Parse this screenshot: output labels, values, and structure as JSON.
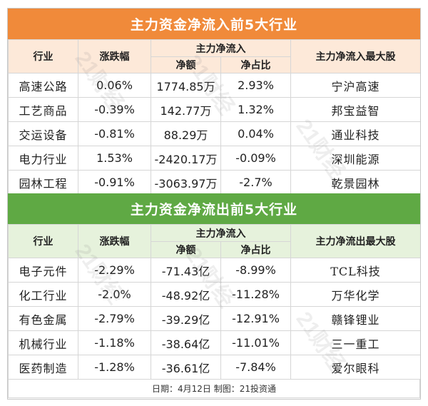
{
  "inflow": {
    "title": "主力资金净流入前5大行业",
    "headers": {
      "industry": "行业",
      "change": "涨跌幅",
      "net_group": "主力净流入",
      "net_amount": "净额",
      "net_ratio": "净占比",
      "top_stock": "主力净流入最大股"
    },
    "rows": [
      {
        "industry": "高速公路",
        "change": "0.06%",
        "amount": "1774.85万",
        "ratio": "2.93%",
        "stock": "宁沪高速"
      },
      {
        "industry": "工艺商品",
        "change": "-0.39%",
        "amount": "142.77万",
        "ratio": "1.32%",
        "stock": "邦宝益智"
      },
      {
        "industry": "交运设备",
        "change": "-0.81%",
        "amount": "88.29万",
        "ratio": "0.04%",
        "stock": "通业科技"
      },
      {
        "industry": "电力行业",
        "change": "1.53%",
        "amount": "-2420.17万",
        "ratio": "-0.09%",
        "stock": "深圳能源"
      },
      {
        "industry": "园林工程",
        "change": "-0.91%",
        "amount": "-3063.97万",
        "ratio": "-2.7%",
        "stock": "乾景园林"
      }
    ]
  },
  "outflow": {
    "title": "主力资金净流出前5大行业",
    "headers": {
      "industry": "行业",
      "change": "涨跌幅",
      "net_group": "主力净流入",
      "net_amount": "净额",
      "net_ratio": "净占比",
      "top_stock": "主力净流出最大股"
    },
    "rows": [
      {
        "industry": "电子元件",
        "change": "-2.29%",
        "amount": "-71.43亿",
        "ratio": "-8.99%",
        "stock": "TCL科技"
      },
      {
        "industry": "化工行业",
        "change": "-2.0%",
        "amount": "-48.92亿",
        "ratio": "-11.28%",
        "stock": "万华化学"
      },
      {
        "industry": "有色金属",
        "change": "-2.79%",
        "amount": "-39.29亿",
        "ratio": "-12.91%",
        "stock": "赣锋锂业"
      },
      {
        "industry": "机械行业",
        "change": "-1.18%",
        "amount": "-38.64亿",
        "ratio": "-11.01%",
        "stock": "三一重工"
      },
      {
        "industry": "医药制造",
        "change": "-1.28%",
        "amount": "-36.61亿",
        "ratio": "-7.84%",
        "stock": "爱尔眼科"
      }
    ]
  },
  "footer": "日期：4月12日 制图：21投资通",
  "watermark": "21财经",
  "colors": {
    "inflow_banner": "#f08a3a",
    "inflow_header": "#fde9d9",
    "outflow_banner": "#5fa944",
    "outflow_header": "#e6f2dc"
  }
}
